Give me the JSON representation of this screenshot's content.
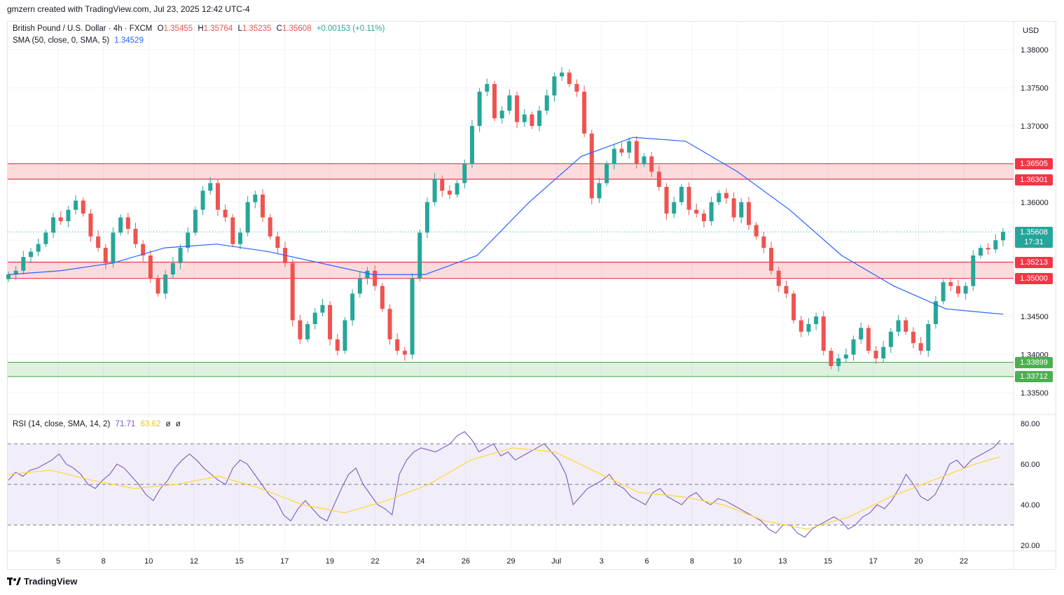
{
  "header": {
    "author_line": "gmzern created with TradingView.com, Jul 23, 2025 12:42 UTC-4"
  },
  "legend_main": {
    "symbol": "British Pound / U.S. Dollar · 4h · FXCM",
    "open_label": "O",
    "open": "1.35455",
    "high_label": "H",
    "high": "1.35764",
    "low_label": "L",
    "low": "1.35235",
    "close_label": "C",
    "close": "1.35608",
    "change": "+0.00153 (+0.11%)"
  },
  "legend_sma": {
    "label": "SMA (50, close, 0, SMA, 5)",
    "value": "1.34529"
  },
  "legend_rsi": {
    "label": "RSI (14, close, SMA, 14, 2)",
    "rsi_value": "71.71",
    "sma_value": "63.62",
    "extra1": "ø",
    "extra2": "ø"
  },
  "currency": "USD",
  "price_axis": [
    "1.38000",
    "1.37500",
    "1.37000",
    "1.36000",
    "1.34500",
    "1.34000",
    "1.33500"
  ],
  "price_tags": {
    "r_top": "1.36505",
    "r_bot": "1.36301",
    "current": "1.35608",
    "countdown": "17:31",
    "m_top": "1.35213",
    "m_bot": "1.35000",
    "s_top": "1.33899",
    "s_bot": "1.33712"
  },
  "rsi_axis": [
    "80.00",
    "60.00",
    "40.00",
    "20.00"
  ],
  "time_axis": [
    "5",
    "8",
    "10",
    "12",
    "15",
    "17",
    "19",
    "22",
    "24",
    "26",
    "29",
    "Jul",
    "3",
    "6",
    "8",
    "10",
    "13",
    "15",
    "17",
    "20",
    "22"
  ],
  "footer": {
    "brand": "TradingView"
  },
  "colors": {
    "up": "#26a69a",
    "down": "#ef5350",
    "sma": "#2962ff",
    "rsi": "#7e57c2",
    "rsi_sma": "#fdd835",
    "resistance_zone": "#f23645",
    "support_zone": "#4caf50"
  },
  "chart_data": {
    "type": "candlestick",
    "title": "British Pound / U.S. Dollar · 4h · FXCM",
    "ylim": [
      1.3325,
      1.381
    ],
    "zones": [
      {
        "name": "resistance",
        "low": 1.36301,
        "high": 1.36505
      },
      {
        "name": "mid",
        "low": 1.35,
        "high": 1.35213
      },
      {
        "name": "support",
        "low": 1.33712,
        "high": 1.33899
      }
    ],
    "close_path": [
      1.3505,
      1.351,
      1.3528,
      1.3535,
      1.3545,
      1.356,
      1.358,
      1.3575,
      1.359,
      1.3602,
      1.3585,
      1.3555,
      1.354,
      1.352,
      1.356,
      1.358,
      1.3565,
      1.3545,
      1.353,
      1.35,
      1.348,
      1.3505,
      1.352,
      1.354,
      1.356,
      1.359,
      1.3615,
      1.3625,
      1.359,
      1.358,
      1.3545,
      1.356,
      1.36,
      1.361,
      1.358,
      1.3555,
      1.354,
      1.352,
      1.3445,
      1.342,
      1.344,
      1.3455,
      1.3465,
      1.342,
      1.3405,
      1.3445,
      1.348,
      1.35,
      1.351,
      1.349,
      1.346,
      1.342,
      1.3405,
      1.34,
      1.35,
      1.356,
      1.36,
      1.363,
      1.3615,
      1.361,
      1.3625,
      1.365,
      1.37,
      1.3745,
      1.3755,
      1.371,
      1.372,
      1.374,
      1.3705,
      1.3715,
      1.37,
      1.372,
      1.374,
      1.3765,
      1.377,
      1.3755,
      1.3745,
      1.369,
      1.3605,
      1.3625,
      1.365,
      1.367,
      1.3665,
      1.368,
      1.365,
      1.366,
      1.364,
      1.362,
      1.3585,
      1.36,
      1.362,
      1.359,
      1.3585,
      1.3575,
      1.36,
      1.3612,
      1.3605,
      1.358,
      1.36,
      1.357,
      1.3555,
      1.354,
      1.351,
      1.349,
      1.348,
      1.3445,
      1.343,
      1.344,
      1.345,
      1.3405,
      1.3385,
      1.3395,
      1.34,
      1.342,
      1.3435,
      1.3405,
      1.3395,
      1.341,
      1.343,
      1.3445,
      1.343,
      1.3415,
      1.3405,
      1.344,
      1.347,
      1.3495,
      1.349,
      1.348,
      1.349,
      1.353,
      1.354,
      1.3538,
      1.355,
      1.3561
    ],
    "sma_path": [
      [
        0,
        1.3505
      ],
      [
        10,
        1.351
      ],
      [
        20,
        1.352
      ],
      [
        30,
        1.354
      ],
      [
        40,
        1.3545
      ],
      [
        50,
        1.3535
      ],
      [
        60,
        1.352
      ],
      [
        70,
        1.3505
      ],
      [
        80,
        1.3505
      ],
      [
        90,
        1.353
      ],
      [
        100,
        1.36
      ],
      [
        110,
        1.366
      ],
      [
        120,
        1.3685
      ],
      [
        130,
        1.368
      ],
      [
        140,
        1.364
      ],
      [
        150,
        1.359
      ],
      [
        160,
        1.353
      ],
      [
        170,
        1.349
      ],
      [
        180,
        1.346
      ],
      [
        191,
        1.34529
      ]
    ],
    "rsi_path": [
      52,
      56,
      54,
      57,
      58,
      60,
      62,
      65,
      60,
      58,
      55,
      50,
      48,
      52,
      55,
      60,
      58,
      54,
      50,
      45,
      42,
      48,
      52,
      58,
      62,
      65,
      62,
      58,
      55,
      52,
      50,
      58,
      62,
      60,
      55,
      50,
      45,
      42,
      35,
      32,
      38,
      42,
      38,
      34,
      32,
      40,
      48,
      55,
      58,
      50,
      45,
      40,
      38,
      35,
      55,
      62,
      66,
      68,
      67,
      66,
      68,
      70,
      74,
      76,
      72,
      66,
      68,
      70,
      64,
      66,
      62,
      64,
      66,
      68,
      70,
      66,
      62,
      55,
      40,
      44,
      48,
      50,
      52,
      55,
      50,
      48,
      44,
      42,
      40,
      46,
      48,
      44,
      42,
      40,
      44,
      46,
      42,
      40,
      43,
      42,
      40,
      38,
      36,
      34,
      32,
      28,
      26,
      30,
      30,
      26,
      24,
      28,
      30,
      32,
      34,
      32,
      28,
      30,
      34,
      36,
      40,
      38,
      42,
      48,
      55,
      50,
      44,
      42,
      45,
      52,
      60,
      62,
      58,
      62,
      64,
      66,
      68,
      71.71
    ],
    "rsi_sma_path": [
      [
        0,
        55
      ],
      [
        10,
        57
      ],
      [
        20,
        52
      ],
      [
        30,
        48
      ],
      [
        40,
        50
      ],
      [
        50,
        54
      ],
      [
        60,
        48
      ],
      [
        70,
        40
      ],
      [
        80,
        36
      ],
      [
        90,
        42
      ],
      [
        100,
        50
      ],
      [
        110,
        62
      ],
      [
        120,
        68
      ],
      [
        130,
        66
      ],
      [
        140,
        56
      ],
      [
        150,
        46
      ],
      [
        160,
        44
      ],
      [
        170,
        40
      ],
      [
        180,
        32
      ],
      [
        190,
        28
      ],
      [
        200,
        34
      ],
      [
        210,
        44
      ],
      [
        220,
        52
      ],
      [
        230,
        60
      ],
      [
        236,
        63.62
      ]
    ],
    "rsi_levels": [
      70,
      50,
      30
    ],
    "rsi_ylim": [
      18,
      82
    ],
    "x_ticks": [
      "5",
      "8",
      "10",
      "12",
      "15",
      "17",
      "19",
      "22",
      "24",
      "26",
      "29",
      "Jul",
      "3",
      "6",
      "8",
      "10",
      "13",
      "15",
      "17",
      "20",
      "22"
    ]
  }
}
